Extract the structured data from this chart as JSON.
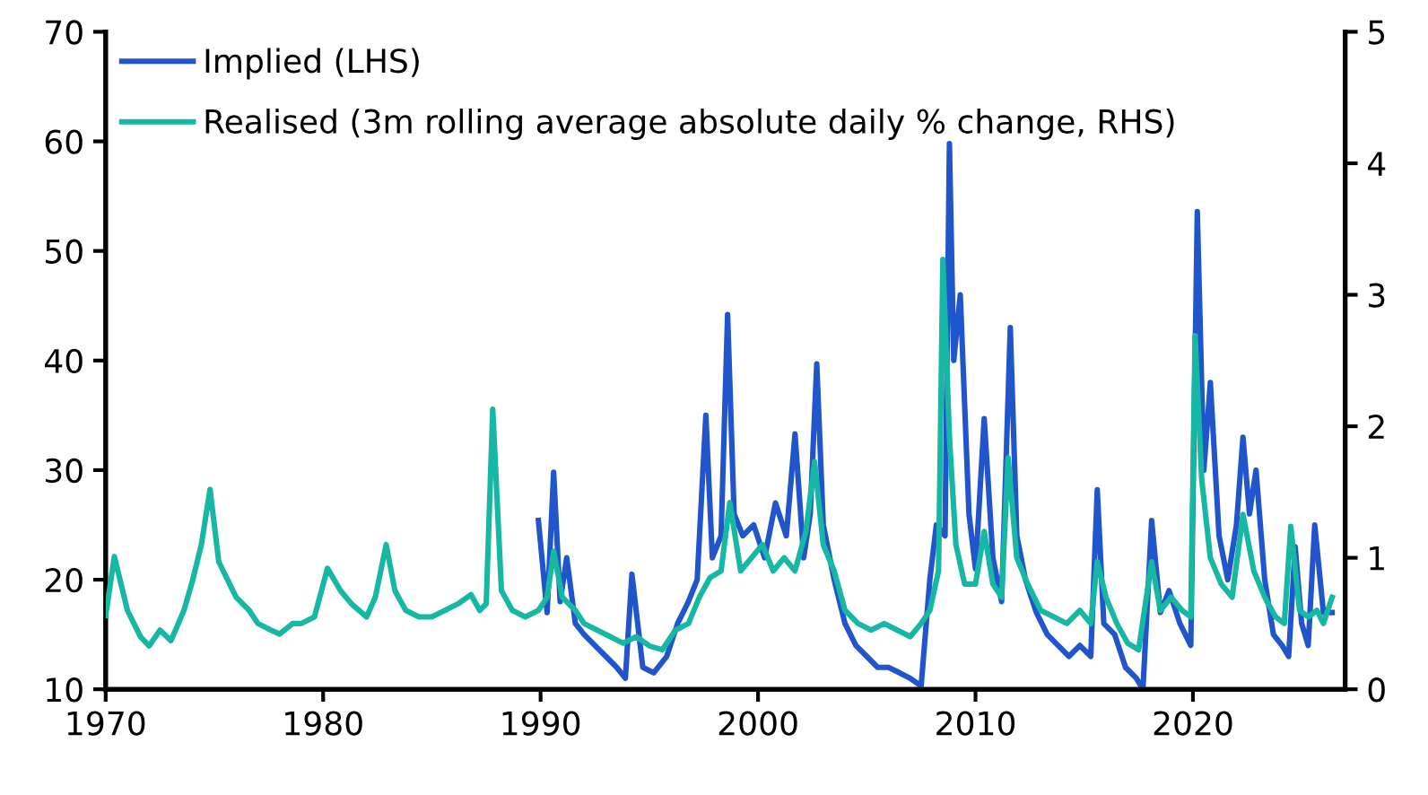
{
  "chart_data": {
    "type": "line",
    "legend": "top left",
    "grid": false,
    "xlim": [
      1970,
      2027
    ],
    "xticks": [
      1970,
      1980,
      1990,
      2000,
      2010,
      2020
    ],
    "ylim": [
      10,
      70
    ],
    "yticks": [
      10,
      20,
      30,
      40,
      50,
      60,
      70
    ],
    "y2lim": [
      0,
      5
    ],
    "y2ticks": [
      0,
      1,
      2,
      3,
      4,
      5
    ],
    "series": [
      {
        "name": "Implied (LHS)",
        "color": "#2155cc",
        "x": [
          1989.9,
          1990.3,
          1990.6,
          1990.9,
          1991.2,
          1991.6,
          1992.0,
          1992.5,
          1993.0,
          1993.5,
          1993.9,
          1994.2,
          1994.7,
          1995.2,
          1995.8,
          1996.3,
          1996.8,
          1997.2,
          1997.6,
          1997.9,
          1998.3,
          1998.6,
          1998.9,
          1999.3,
          1999.8,
          2000.3,
          2000.8,
          2001.3,
          2001.7,
          2002.1,
          2002.4,
          2002.7,
          2003.0,
          2003.5,
          2004.0,
          2004.5,
          2005.0,
          2005.5,
          2006.0,
          2006.5,
          2007.0,
          2007.5,
          2007.9,
          2008.2,
          2008.6,
          2008.8,
          2009.0,
          2009.3,
          2009.7,
          2010.0,
          2010.4,
          2010.8,
          2011.2,
          2011.6,
          2011.9,
          2012.3,
          2012.8,
          2013.3,
          2013.8,
          2014.3,
          2014.8,
          2015.3,
          2015.6,
          2015.9,
          2016.4,
          2016.9,
          2017.4,
          2017.7,
          2018.1,
          2018.5,
          2018.9,
          2019.4,
          2019.9,
          2020.2,
          2020.5,
          2020.8,
          2021.2,
          2021.6,
          2022.0,
          2022.3,
          2022.6,
          2022.9,
          2023.3,
          2023.7,
          2024.1,
          2024.4,
          2024.7,
          2025.0,
          2025.3,
          2025.6,
          2026.0,
          2026.4
        ],
        "values": [
          25.4,
          17,
          29.8,
          18,
          22,
          16,
          15,
          14,
          13,
          12,
          11,
          20.5,
          12,
          11.5,
          13,
          16,
          18,
          20,
          35,
          22,
          24,
          44.2,
          26,
          24,
          25,
          22,
          27,
          24,
          33.3,
          22,
          26,
          39.7,
          25,
          20,
          16,
          14,
          13,
          12,
          12,
          11.5,
          11,
          10.3,
          20,
          25,
          24,
          59.8,
          40,
          46,
          26,
          21,
          34.7,
          22,
          18,
          43,
          24,
          20,
          17,
          15,
          14,
          13,
          14,
          13,
          28.2,
          16,
          15,
          12,
          11,
          10,
          25.4,
          17,
          19,
          16,
          14,
          53.6,
          30,
          38,
          24,
          20,
          25,
          33,
          26,
          30,
          20,
          15,
          14,
          13,
          23,
          16,
          14,
          25,
          17,
          17
        ]
      },
      {
        "name": "Realised (3m rolling average absolute daily % change, RHS)",
        "color": "#16b7a3",
        "axis": "y2",
        "x": [
          1970.0,
          1970.4,
          1971.0,
          1971.6,
          1972.0,
          1972.5,
          1973.0,
          1973.6,
          1974.0,
          1974.4,
          1974.8,
          1975.2,
          1975.7,
          1976.0,
          1976.6,
          1977.0,
          1977.6,
          1978.0,
          1978.6,
          1979.0,
          1979.6,
          1980.2,
          1980.8,
          1981.3,
          1982.0,
          1982.4,
          1982.9,
          1983.3,
          1983.8,
          1984.4,
          1985.0,
          1985.6,
          1986.2,
          1986.8,
          1987.2,
          1987.5,
          1987.8,
          1988.2,
          1988.7,
          1989.3,
          1989.9,
          1990.3,
          1990.6,
          1991.0,
          1991.6,
          1992.0,
          1992.6,
          1993.2,
          1993.8,
          1994.4,
          1995.0,
          1995.6,
          1996.2,
          1996.8,
          1997.3,
          1997.8,
          1998.3,
          1998.7,
          1999.2,
          1999.7,
          2000.2,
          2000.7,
          2001.2,
          2001.7,
          2002.2,
          2002.6,
          2003.0,
          2003.5,
          2004.0,
          2004.6,
          2005.2,
          2005.8,
          2006.4,
          2007.0,
          2007.5,
          2007.9,
          2008.3,
          2008.5,
          2008.8,
          2009.1,
          2009.5,
          2010.0,
          2010.4,
          2010.8,
          2011.2,
          2011.5,
          2011.9,
          2012.4,
          2013.0,
          2013.6,
          2014.2,
          2014.8,
          2015.3,
          2015.6,
          2016.0,
          2016.5,
          2017.0,
          2017.5,
          2018.1,
          2018.5,
          2019.0,
          2019.5,
          2019.9,
          2020.1,
          2020.4,
          2020.8,
          2021.3,
          2021.8,
          2022.3,
          2022.8,
          2023.3,
          2023.8,
          2024.2,
          2024.5,
          2024.9,
          2025.3,
          2025.7,
          2026.0,
          2026.4
        ],
        "values": [
          0.56,
          1.01,
          0.6,
          0.4,
          0.33,
          0.45,
          0.37,
          0.6,
          0.83,
          1.1,
          1.52,
          0.97,
          0.8,
          0.7,
          0.6,
          0.5,
          0.45,
          0.42,
          0.5,
          0.5,
          0.55,
          0.92,
          0.75,
          0.65,
          0.55,
          0.7,
          1.1,
          0.75,
          0.6,
          0.55,
          0.55,
          0.6,
          0.65,
          0.72,
          0.6,
          0.65,
          2.13,
          0.75,
          0.6,
          0.55,
          0.6,
          0.7,
          1.05,
          0.7,
          0.6,
          0.5,
          0.45,
          0.4,
          0.35,
          0.4,
          0.33,
          0.3,
          0.45,
          0.5,
          0.7,
          0.85,
          0.9,
          1.42,
          0.9,
          1.0,
          1.1,
          0.9,
          1.0,
          0.9,
          1.2,
          1.73,
          1.1,
          0.9,
          0.6,
          0.5,
          0.45,
          0.5,
          0.45,
          0.4,
          0.5,
          0.6,
          0.9,
          3.27,
          1.92,
          1.1,
          0.8,
          0.8,
          1.2,
          0.8,
          0.7,
          1.76,
          1.0,
          0.8,
          0.6,
          0.55,
          0.5,
          0.6,
          0.5,
          0.97,
          0.7,
          0.5,
          0.35,
          0.3,
          0.97,
          0.6,
          0.7,
          0.6,
          0.55,
          2.69,
          1.6,
          1.0,
          0.8,
          0.7,
          1.33,
          0.9,
          0.7,
          0.55,
          0.5,
          1.24,
          0.6,
          0.55,
          0.6,
          0.5,
          0.7
        ]
      }
    ]
  }
}
